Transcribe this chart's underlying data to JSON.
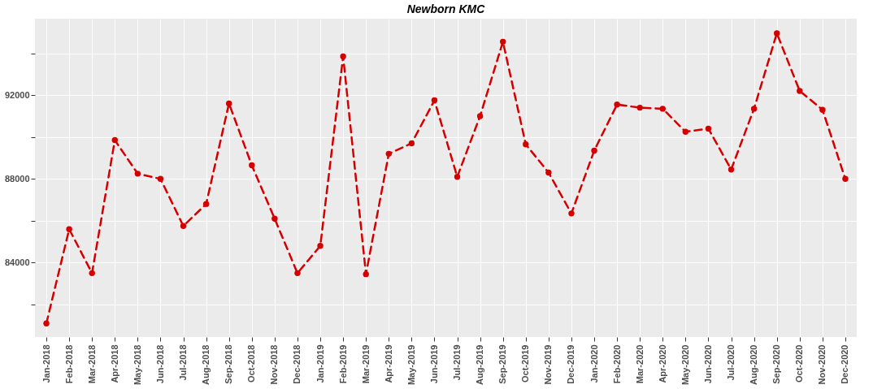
{
  "chart_data": {
    "type": "line",
    "title": "Newborn KMC",
    "categories": [
      "Jan-2018",
      "Feb-2018",
      "Mar-2018",
      "Apr-2018",
      "May-2018",
      "Jun-2018",
      "Jul-2018",
      "Aug-2018",
      "Sep-2018",
      "Oct-2018",
      "Nov-2018",
      "Dec-2018",
      "Jan-2019",
      "Feb-2019",
      "Mar-2019",
      "Apr-2019",
      "May-2019",
      "Jun-2019",
      "Jul-2019",
      "Aug-2019",
      "Sep-2019",
      "Oct-2019",
      "Nov-2019",
      "Dec-2019",
      "Jan-2020",
      "Feb-2020",
      "Mar-2020",
      "Apr-2020",
      "May-2020",
      "Jun-2020",
      "Jul-2020",
      "Aug-2020",
      "Sep-2020",
      "Oct-2020",
      "Nov-2020",
      "Dec-2020"
    ],
    "series": [
      {
        "color": "#d40000",
        "values": [
          81100,
          85600,
          83500,
          89850,
          88250,
          88000,
          85750,
          86800,
          91600,
          88650,
          86100,
          83500,
          84800,
          93850,
          83450,
          89200,
          89700,
          91750,
          88100,
          91000,
          94550,
          89650,
          88300,
          86350,
          89350,
          91550,
          91400,
          91350,
          90250,
          90400,
          88450,
          91350,
          94950,
          92200,
          91300,
          88000
        ]
      }
    ],
    "ylim": [
      80450,
      95650
    ],
    "yticks": [
      {
        "value": 82000,
        "label": null
      },
      84000,
      {
        "value": 86000,
        "label": null
      },
      88000,
      {
        "value": 90000,
        "label": null
      },
      92000,
      {
        "value": 94000,
        "label": null
      }
    ],
    "grid": true,
    "marker": "circle",
    "line_style": "dashed"
  }
}
